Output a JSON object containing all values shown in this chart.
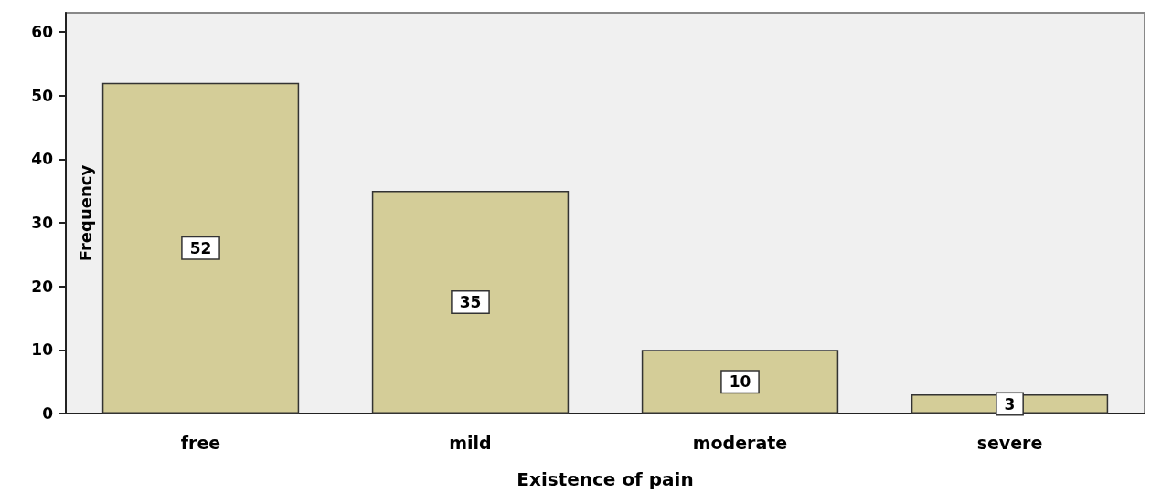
{
  "chart_data": {
    "type": "bar",
    "xlabel": "Existence of pain",
    "ylabel": "Frequency",
    "categories": [
      "free",
      "mild",
      "moderate",
      "severe"
    ],
    "values": [
      52,
      35,
      10,
      3
    ],
    "color": "#d4cd98",
    "ylim": [
      0,
      63
    ],
    "yticks": [
      0,
      10,
      20,
      30,
      40,
      50,
      60
    ],
    "grid": false,
    "data_labels": true
  }
}
